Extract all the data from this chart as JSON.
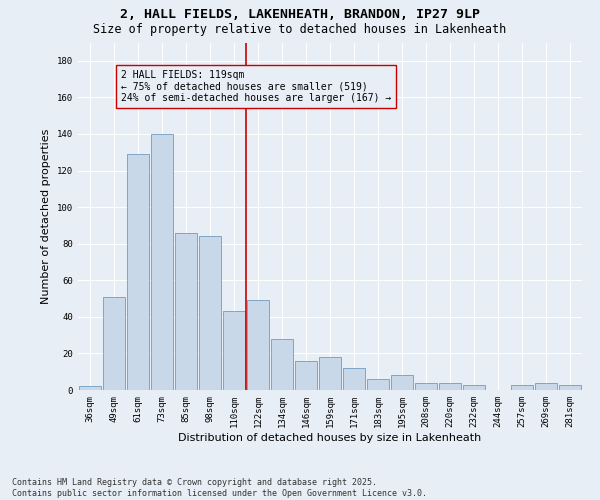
{
  "title_line1": "2, HALL FIELDS, LAKENHEATH, BRANDON, IP27 9LP",
  "title_line2": "Size of property relative to detached houses in Lakenheath",
  "xlabel": "Distribution of detached houses by size in Lakenheath",
  "ylabel": "Number of detached properties",
  "bar_color": "#c8d8e8",
  "bar_edge_color": "#5b8db8",
  "categories": [
    "36sqm",
    "49sqm",
    "61sqm",
    "73sqm",
    "85sqm",
    "98sqm",
    "110sqm",
    "122sqm",
    "134sqm",
    "146sqm",
    "159sqm",
    "171sqm",
    "183sqm",
    "195sqm",
    "208sqm",
    "220sqm",
    "232sqm",
    "244sqm",
    "257sqm",
    "269sqm",
    "281sqm"
  ],
  "values": [
    2,
    51,
    129,
    140,
    86,
    84,
    43,
    49,
    28,
    16,
    18,
    12,
    6,
    8,
    4,
    4,
    3,
    0,
    3,
    4,
    3
  ],
  "vline_x": 6.5,
  "vline_color": "#cc0000",
  "annotation_text": "2 HALL FIELDS: 119sqm\n← 75% of detached houses are smaller (519)\n24% of semi-detached houses are larger (167) →",
  "ylim": [
    0,
    190
  ],
  "yticks": [
    0,
    20,
    40,
    60,
    80,
    100,
    120,
    140,
    160,
    180
  ],
  "footnote": "Contains HM Land Registry data © Crown copyright and database right 2025.\nContains public sector information licensed under the Open Government Licence v3.0.",
  "background_color": "#e8eef5",
  "grid_color": "#ffffff",
  "title_fontsize": 9.5,
  "subtitle_fontsize": 8.5,
  "axis_label_fontsize": 8,
  "tick_fontsize": 6.5,
  "annotation_fontsize": 7,
  "footnote_fontsize": 6
}
